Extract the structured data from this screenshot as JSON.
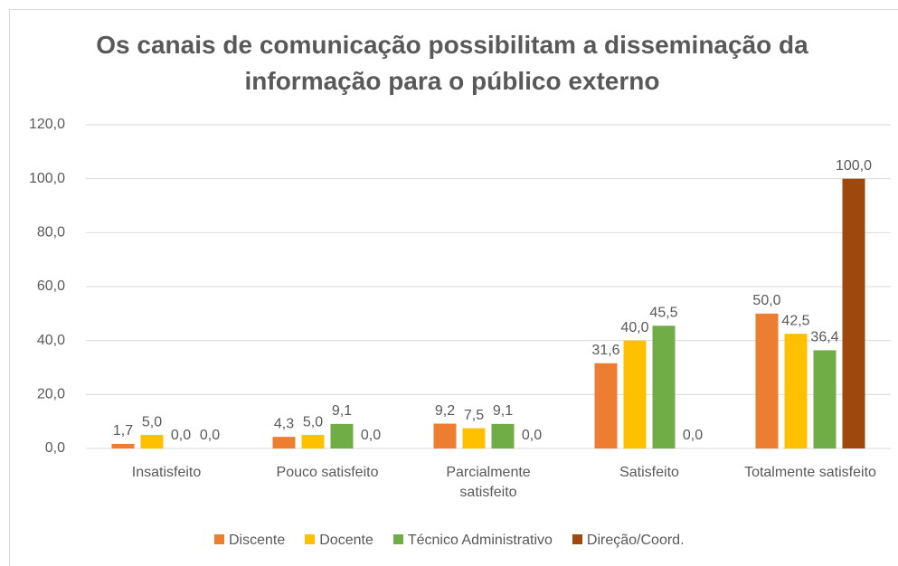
{
  "chart_data": {
    "type": "bar",
    "title": "Os canais de comunicação possibilitam a disseminação da informação para o público externo",
    "categories": [
      "Insatisfeito",
      "Pouco satisfeito",
      "Parcialmente satisfeito",
      "Satisfeito",
      "Totalmente satisfeito"
    ],
    "series": [
      {
        "name": "Discente",
        "color": "#ed7d31",
        "values": [
          1.7,
          4.3,
          9.2,
          31.6,
          50.0
        ],
        "value_labels": [
          "1,7",
          "4,3",
          "9,2",
          "31,6",
          "50,0"
        ]
      },
      {
        "name": "Docente",
        "color": "#ffc000",
        "values": [
          5.0,
          5.0,
          7.5,
          40.0,
          42.5
        ],
        "value_labels": [
          "5,0",
          "5,0",
          "7,5",
          "40,0",
          "42,5"
        ]
      },
      {
        "name": "Técnico Administrativo",
        "color": "#70ad47",
        "values": [
          0.0,
          9.1,
          9.1,
          45.5,
          36.4
        ],
        "value_labels": [
          "0,0",
          "9,1",
          "9,1",
          "45,5",
          "36,4"
        ]
      },
      {
        "name": "Direção/Coord.",
        "color": "#9e480e",
        "values": [
          0.0,
          0.0,
          0.0,
          0.0,
          100.0
        ],
        "value_labels": [
          "0,0",
          "0,0",
          "0,0",
          "0,0",
          "100,0"
        ]
      }
    ],
    "ylim": [
      0,
      120
    ],
    "yticks": [
      {
        "value": 0,
        "label": "0,0"
      },
      {
        "value": 20,
        "label": "20,0"
      },
      {
        "value": 40,
        "label": "40,0"
      },
      {
        "value": 60,
        "label": "60,0"
      },
      {
        "value": 80,
        "label": "80,0"
      },
      {
        "value": 100,
        "label": "100,0"
      },
      {
        "value": 120,
        "label": "120,0"
      }
    ],
    "grid": true,
    "legend": "bottom"
  }
}
